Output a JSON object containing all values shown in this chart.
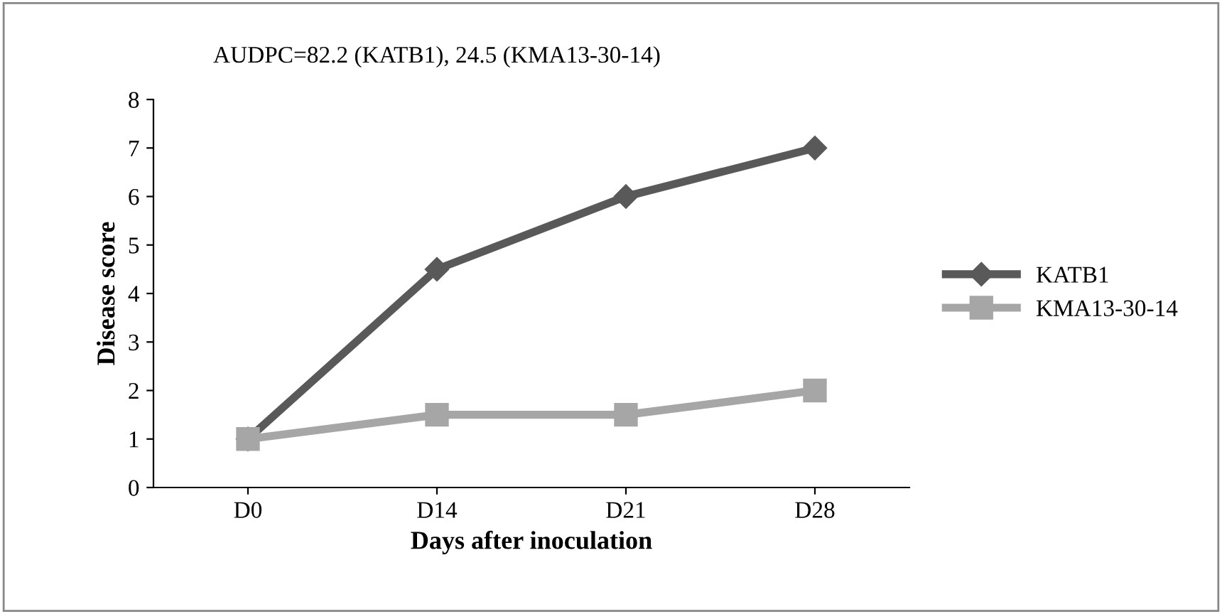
{
  "chart_data": {
    "type": "line",
    "annotations": [
      "AUDPC=82.2 (KATB1), 24.5 (KMA13-30-14)"
    ],
    "xlabel": "Days after inoculation",
    "ylabel": "Disease score",
    "categories": [
      "D0",
      "D14",
      "D21",
      "D28"
    ],
    "series": [
      {
        "name": "KATB1",
        "color": "#595959",
        "marker": "diamond",
        "values": [
          1,
          4.5,
          6,
          7
        ]
      },
      {
        "name": "KMA13-30-14",
        "color": "#a6a6a6",
        "marker": "square",
        "values": [
          1,
          1.5,
          1.5,
          2
        ]
      }
    ],
    "ylim": [
      0,
      8
    ],
    "yticks": [
      0,
      1,
      2,
      3,
      4,
      5,
      6,
      7,
      8
    ],
    "grid": false,
    "legend": "right",
    "line_style": "solid"
  }
}
